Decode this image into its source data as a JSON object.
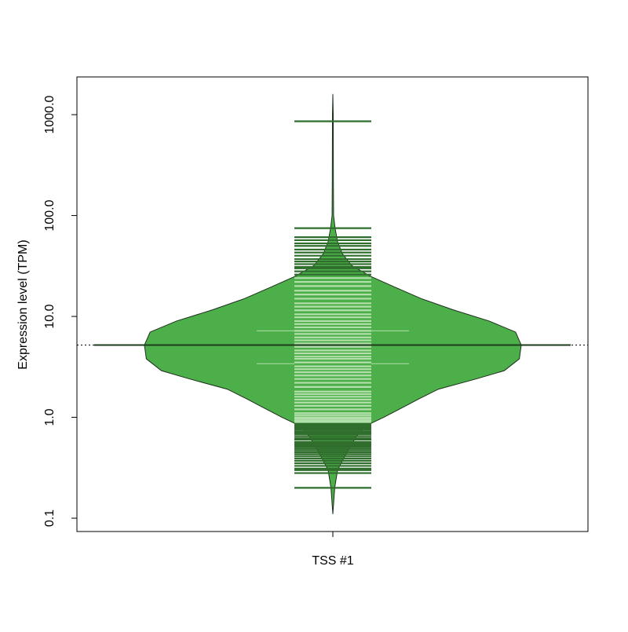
{
  "chart_data": {
    "type": "beanplot",
    "ylabel": "Expression level (TPM)",
    "categories": [
      "TSS #1"
    ],
    "log_y": true,
    "ylim": [
      0.0738,
      2366
    ],
    "yticks": [
      0.1,
      {
        "value": 1,
        "label": "1.0"
      },
      {
        "value": 10,
        "label": "10.0"
      },
      {
        "value": 100,
        "label": "100.0"
      },
      {
        "value": 1000,
        "label": "1000.0"
      }
    ],
    "median": 5.2,
    "quartiles": [
      3.4,
      7.2
    ],
    "colors": {
      "bean": "#4daf4a",
      "beanline": "#b2dfab",
      "beanline_outside": "#2f6e2c",
      "border": "#1c2e1c"
    },
    "density": {
      "y": [
        0.11,
        0.2,
        0.3,
        0.45,
        0.65,
        0.85,
        1.0,
        1.25,
        1.5,
        1.9,
        2.4,
        2.9,
        3.8,
        5.2,
        7.0,
        9.0,
        11.6,
        15,
        19.5,
        25,
        32,
        42,
        55,
        75,
        100,
        200,
        1000,
        1600
      ],
      "values": [
        0,
        0.01,
        0.025,
        0.075,
        0.125,
        0.19,
        0.27,
        0.37,
        0.45,
        0.56,
        0.76,
        0.91,
        0.99,
        1.0,
        0.97,
        0.83,
        0.64,
        0.47,
        0.33,
        0.2,
        0.1,
        0.05,
        0.025,
        0.012,
        0.004,
        0.003,
        0.002,
        0
      ]
    },
    "observations": [
      0.2,
      0.28,
      0.3,
      0.31,
      0.33,
      0.35,
      0.37,
      0.39,
      0.41,
      0.43,
      0.45,
      0.47,
      0.49,
      0.51,
      0.53,
      0.55,
      0.57,
      0.6,
      0.62,
      0.65,
      0.68,
      0.7,
      0.72,
      0.75,
      0.78,
      0.8,
      0.83,
      0.86,
      0.9,
      0.93,
      0.97,
      1.0,
      1.05,
      1.1,
      1.2,
      1.3,
      1.4,
      1.5,
      1.6,
      1.7,
      1.8,
      2.0,
      2.2,
      2.4,
      2.6,
      2.8,
      3.0,
      3.2,
      3.5,
      3.8,
      4.0,
      4.3,
      4.6,
      5.0,
      5.4,
      5.8,
      6.2,
      6.7,
      7.2,
      7.8,
      8.4,
      9.0,
      9.8,
      10.5,
      11.5,
      12.5,
      13.5,
      15,
      16.5,
      18,
      20,
      22,
      24,
      26,
      28,
      30,
      31,
      33,
      35,
      37,
      40,
      43,
      46,
      50,
      53,
      57,
      61,
      75,
      860
    ]
  }
}
